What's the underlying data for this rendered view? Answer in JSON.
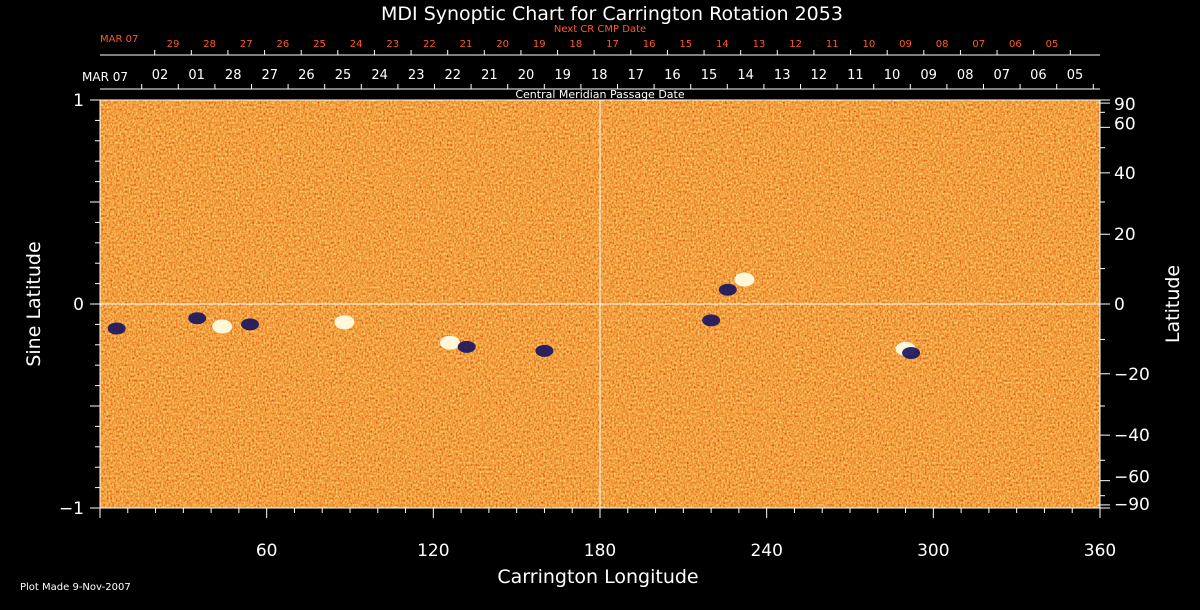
{
  "chart_data": {
    "type": "heatmap",
    "title": "MDI Synoptic Chart for Carrington Rotation 2053",
    "xlabel": "Carrington Longitude",
    "ylabel_left": "Sine Latitude",
    "ylabel_right": "Latitude",
    "top_axis_title": "Central Meridian Passage Date",
    "next_cr_title": "Next CR CMP Date",
    "xlim": [
      0,
      360
    ],
    "ylim": [
      -1,
      1
    ],
    "grid": false,
    "crosshair": {
      "longitude": 180,
      "sine_latitude": 0
    },
    "x_ticks": [
      "60",
      "120",
      "180",
      "240",
      "300",
      "360"
    ],
    "x_tick_values": [
      60,
      120,
      180,
      240,
      300,
      360
    ],
    "left_ticks": [
      "1",
      "0",
      "−1"
    ],
    "left_tick_values": [
      1,
      0,
      -1
    ],
    "right_ticks": [
      "90",
      "60",
      "40",
      "20",
      "0",
      "−20",
      "−40",
      "−60",
      "−90"
    ],
    "right_tick_values": [
      90,
      60,
      40,
      20,
      0,
      -20,
      -40,
      -60,
      -90
    ],
    "cmp_dates": {
      "start_label": "MAR 07",
      "labels": [
        "02",
        "01",
        "28",
        "27",
        "26",
        "25",
        "24",
        "23",
        "22",
        "21",
        "20",
        "19",
        "18",
        "17",
        "16",
        "15",
        "14",
        "13",
        "12",
        "11",
        "10",
        "09",
        "08",
        "07",
        "06",
        "05"
      ]
    },
    "next_cr_dates": {
      "start_label": "MAR 07",
      "labels": [
        "29",
        "28",
        "27",
        "26",
        "25",
        "24",
        "23",
        "22",
        "21",
        "20",
        "19",
        "18",
        "17",
        "16",
        "15",
        "14",
        "13",
        "12",
        "11",
        "10",
        "09",
        "08",
        "07",
        "06",
        "05"
      ]
    },
    "colormap": [
      "#1a1660",
      "#a01400",
      "#d83a0a",
      "#ef6a18",
      "#ffb040",
      "#ffffd8"
    ],
    "features": [
      {
        "name": "white",
        "lon": 44,
        "sinlat": -0.11
      },
      {
        "name": "white",
        "lon": 88,
        "sinlat": -0.09
      },
      {
        "name": "white",
        "lon": 126,
        "sinlat": -0.19
      },
      {
        "name": "white",
        "lon": 232,
        "sinlat": 0.12
      },
      {
        "name": "white",
        "lon": 290,
        "sinlat": -0.22
      },
      {
        "name": "dark",
        "lon": 6,
        "sinlat": -0.12
      },
      {
        "name": "dark",
        "lon": 35,
        "sinlat": -0.07
      },
      {
        "name": "dark",
        "lon": 54,
        "sinlat": -0.1
      },
      {
        "name": "dark",
        "lon": 132,
        "sinlat": -0.21
      },
      {
        "name": "dark",
        "lon": 160,
        "sinlat": -0.23
      },
      {
        "name": "dark",
        "lon": 226,
        "sinlat": 0.07
      },
      {
        "name": "dark",
        "lon": 220,
        "sinlat": -0.08
      },
      {
        "name": "dark",
        "lon": 292,
        "sinlat": -0.24
      }
    ]
  },
  "footer": {
    "plot_made": "Plot Made  9-Nov-2007"
  }
}
